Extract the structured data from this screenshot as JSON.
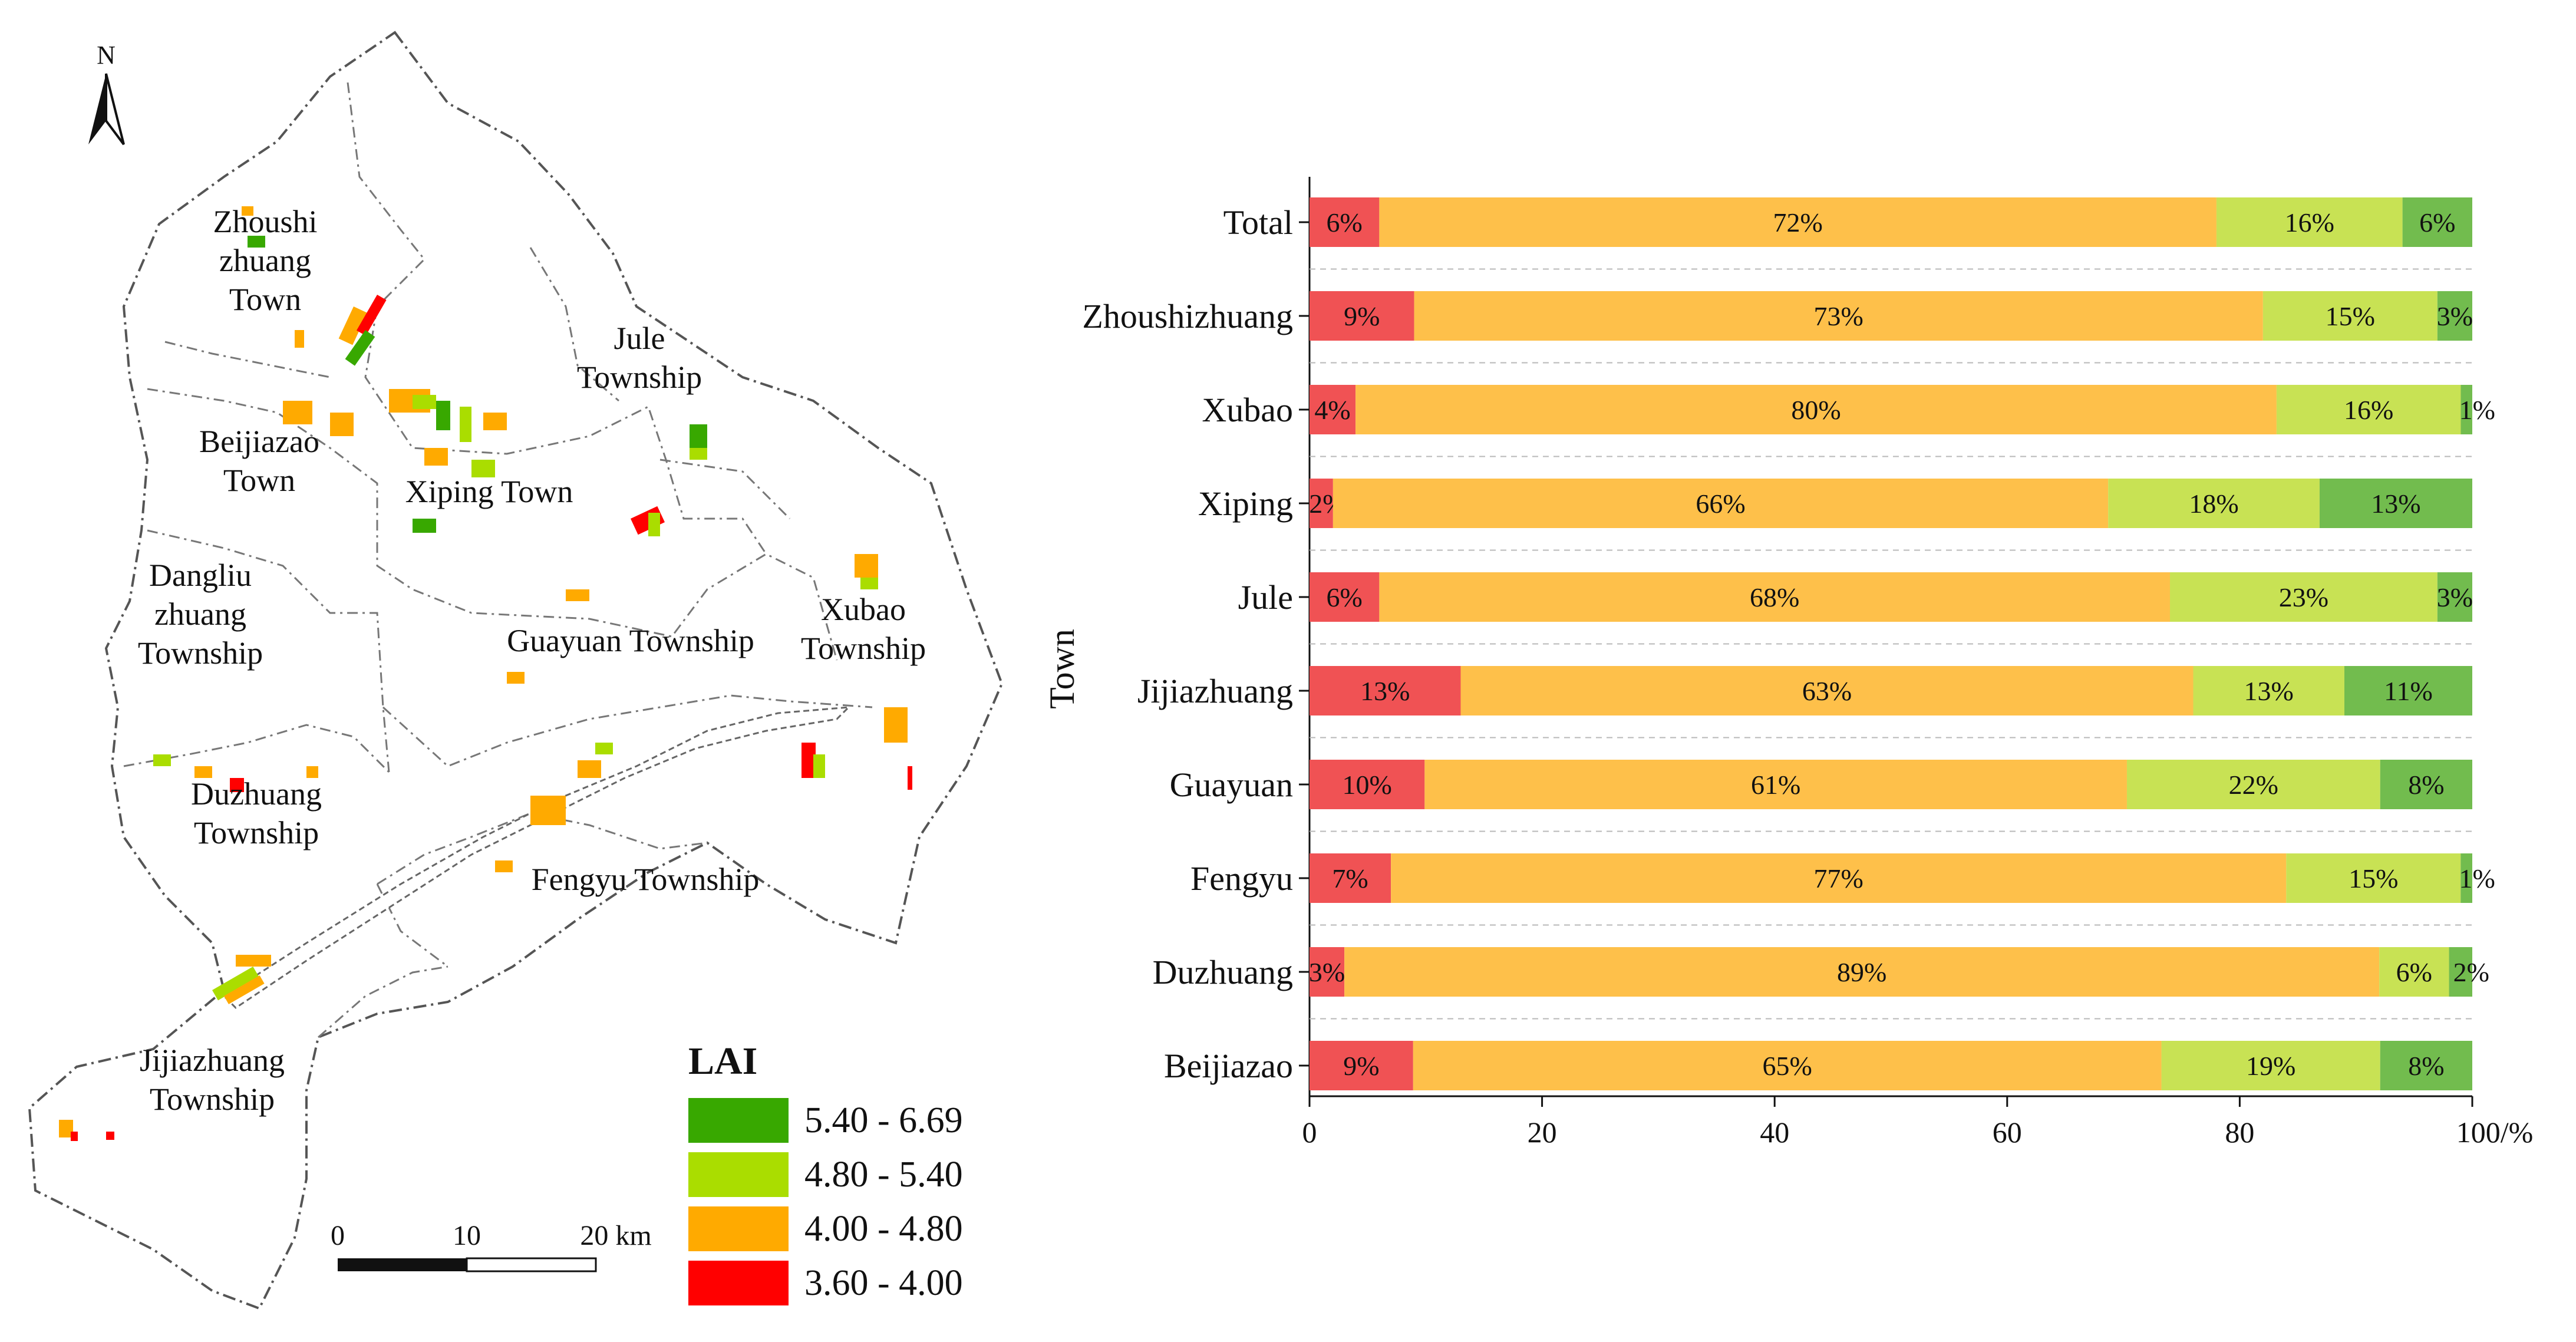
{
  "map": {
    "north_label": "N",
    "north_icon": "north-arrow-icon",
    "towns": [
      {
        "id": "zhoushi",
        "lines": [
          "Zhoushi",
          "zhuang",
          "Town"
        ]
      },
      {
        "id": "jule",
        "lines": [
          "Jule",
          "Township"
        ]
      },
      {
        "id": "beijiazao",
        "lines": [
          "Beijiazao",
          "Town"
        ]
      },
      {
        "id": "xiping",
        "lines": [
          "Xiping Town"
        ]
      },
      {
        "id": "dangliu",
        "lines": [
          "Dangliu",
          "zhuang",
          "Township"
        ]
      },
      {
        "id": "guayuan",
        "lines": [
          "Guayuan Township"
        ]
      },
      {
        "id": "xubao",
        "lines": [
          "Xubao",
          "Township"
        ]
      },
      {
        "id": "duzhuang",
        "lines": [
          "Duzhuang",
          "Township"
        ]
      },
      {
        "id": "fengyu",
        "lines": [
          "Fengyu Township"
        ]
      },
      {
        "id": "jijiazhuang",
        "lines": [
          "Jijiazhuang",
          "Township"
        ]
      }
    ],
    "legend": {
      "title": "LAI",
      "items": [
        {
          "label": "5.40 - 6.69",
          "color": "#38a800"
        },
        {
          "label": "4.80 - 5.40",
          "color": "#aadd00"
        },
        {
          "label": "4.00 - 4.80",
          "color": "#ffaa00"
        },
        {
          "label": "3.60 - 4.00",
          "color": "#ff0000"
        }
      ]
    },
    "scale_bar": {
      "labels": [
        "0",
        "10",
        "20 km"
      ]
    }
  },
  "chart_data": {
    "type": "bar",
    "orientation": "horizontal",
    "stacked": true,
    "title": "",
    "ylabel": "Town",
    "xlabel": "",
    "xlim": [
      0,
      100
    ],
    "xticks": [
      "0",
      "20",
      "40",
      "60",
      "80",
      "100/%"
    ],
    "categories": [
      "Total",
      "Zhoushizhuang",
      "Xubao",
      "Xiping",
      "Jule",
      "Jijiazhuang",
      "Guayuan",
      "Fengyu",
      "Duzhuang",
      "Beijiazao"
    ],
    "series": [
      {
        "name": "3.60 - 4.00",
        "color": "#f05254",
        "values": [
          6,
          9,
          4,
          2,
          6,
          13,
          10,
          7,
          3,
          9
        ],
        "labels": [
          "6%",
          "9%",
          "4%",
          "2%",
          "6%",
          "13%",
          "10%",
          "7%",
          "3%",
          "9%"
        ]
      },
      {
        "name": "4.00 - 4.80",
        "color": "#fec04a",
        "values": [
          72,
          73,
          80,
          66,
          68,
          63,
          61,
          77,
          89,
          65
        ],
        "labels": [
          "72%",
          "73%",
          "80%",
          "66%",
          "68%",
          "63%",
          "61%",
          "77%",
          "89%",
          "65%"
        ]
      },
      {
        "name": "4.80 - 5.40",
        "color": "#c8e254",
        "values": [
          16,
          15,
          16,
          18,
          23,
          13,
          22,
          15,
          6,
          19
        ],
        "labels": [
          "16%",
          "15%",
          "16%",
          "18%",
          "23%",
          "13%",
          "22%",
          "15%",
          "6%",
          "19%"
        ]
      },
      {
        "name": "5.40 - 6.69",
        "color": "#72bc4e",
        "values": [
          6,
          3,
          1,
          13,
          3,
          11,
          8,
          1,
          2,
          8
        ],
        "labels": [
          "6%",
          "3%",
          "1%",
          "13%",
          "3%",
          "11%",
          "8%",
          "1%",
          "2%",
          "8%"
        ]
      }
    ],
    "grid": "dashed horizontal separators",
    "legend": "none"
  }
}
